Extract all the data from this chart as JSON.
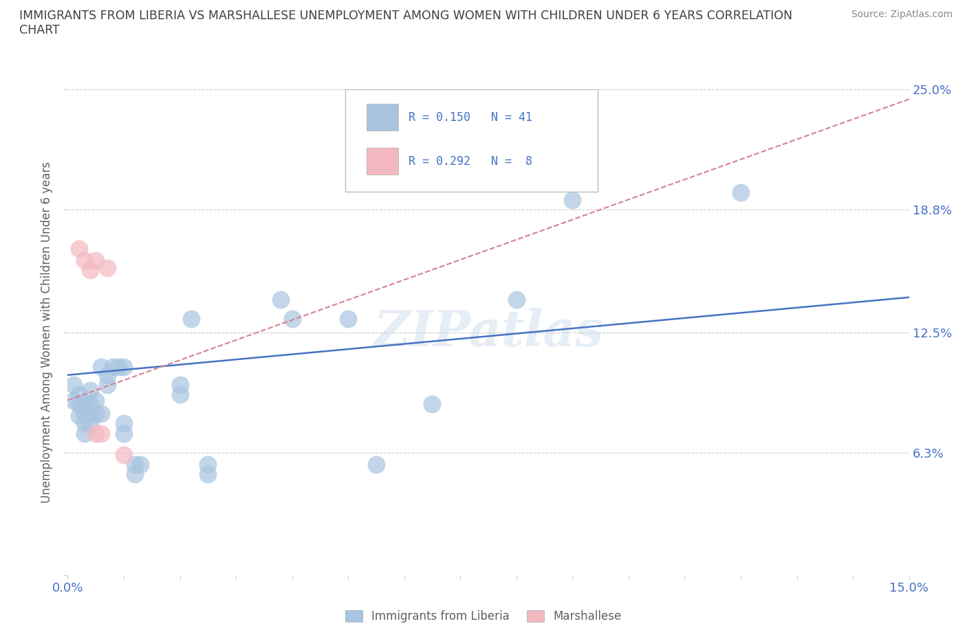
{
  "title_line1": "IMMIGRANTS FROM LIBERIA VS MARSHALLESE UNEMPLOYMENT AMONG WOMEN WITH CHILDREN UNDER 6 YEARS CORRELATION",
  "title_line2": "CHART",
  "source": "Source: ZipAtlas.com",
  "ylabel": "Unemployment Among Women with Children Under 6 years",
  "xlim": [
    0.0,
    0.15
  ],
  "ylim": [
    0.0,
    0.25
  ],
  "ytick_values": [
    0.0,
    0.063,
    0.125,
    0.188,
    0.25
  ],
  "ytick_labels": [
    "",
    "6.3%",
    "12.5%",
    "18.8%",
    "25.0%"
  ],
  "watermark": "ZIPatlas",
  "blue_color": "#a8c4e0",
  "pink_color": "#f4b8c1",
  "blue_line_color": "#4472c4",
  "pink_line_color": "#d48090",
  "blue_scatter": [
    [
      0.001,
      0.098
    ],
    [
      0.001,
      0.09
    ],
    [
      0.002,
      0.093
    ],
    [
      0.002,
      0.088
    ],
    [
      0.002,
      0.082
    ],
    [
      0.003,
      0.088
    ],
    [
      0.003,
      0.083
    ],
    [
      0.003,
      0.078
    ],
    [
      0.003,
      0.073
    ],
    [
      0.004,
      0.095
    ],
    [
      0.004,
      0.088
    ],
    [
      0.004,
      0.083
    ],
    [
      0.004,
      0.078
    ],
    [
      0.005,
      0.09
    ],
    [
      0.005,
      0.083
    ],
    [
      0.006,
      0.107
    ],
    [
      0.006,
      0.083
    ],
    [
      0.007,
      0.103
    ],
    [
      0.007,
      0.098
    ],
    [
      0.008,
      0.107
    ],
    [
      0.009,
      0.107
    ],
    [
      0.01,
      0.107
    ],
    [
      0.01,
      0.078
    ],
    [
      0.01,
      0.073
    ],
    [
      0.012,
      0.057
    ],
    [
      0.012,
      0.052
    ],
    [
      0.013,
      0.057
    ],
    [
      0.02,
      0.098
    ],
    [
      0.02,
      0.093
    ],
    [
      0.022,
      0.132
    ],
    [
      0.025,
      0.057
    ],
    [
      0.025,
      0.052
    ],
    [
      0.038,
      0.142
    ],
    [
      0.04,
      0.132
    ],
    [
      0.05,
      0.132
    ],
    [
      0.055,
      0.057
    ],
    [
      0.065,
      0.088
    ],
    [
      0.08,
      0.142
    ],
    [
      0.09,
      0.193
    ],
    [
      0.12,
      0.197
    ]
  ],
  "pink_scatter": [
    [
      0.002,
      0.168
    ],
    [
      0.003,
      0.162
    ],
    [
      0.004,
      0.157
    ],
    [
      0.005,
      0.162
    ],
    [
      0.005,
      0.073
    ],
    [
      0.006,
      0.073
    ],
    [
      0.007,
      0.158
    ],
    [
      0.01,
      0.062
    ]
  ],
  "blue_trend_x": [
    0.0,
    0.15
  ],
  "blue_trend_y": [
    0.103,
    0.143
  ],
  "pink_trend_x": [
    0.0,
    0.15
  ],
  "pink_trend_y": [
    0.09,
    0.245
  ],
  "grid_color": "#cccccc",
  "bg_color": "#ffffff",
  "title_color": "#404040",
  "axis_label_color": "#606060",
  "tick_color": "#4472c4",
  "legend_label_blue": "Immigrants from Liberia",
  "legend_label_pink": "Marshallese"
}
